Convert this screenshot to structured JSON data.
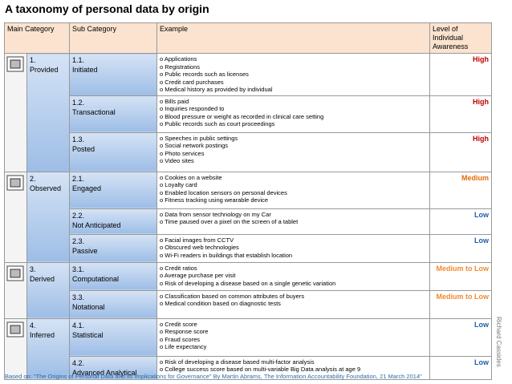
{
  "title": "A taxonomy of personal data by origin",
  "table": {
    "headers": [
      "Main Category",
      "Sub Category",
      "Example",
      "Level of Individual Awareness"
    ],
    "groups": [
      {
        "number": "1.",
        "name": "Provided",
        "rows": [
          {
            "number": "1.1.",
            "name": "Initiated",
            "examples": [
              "o Applications",
              "o Registrations",
              "o Public records such as licenses",
              "o Credit card purchases",
              "o Medical history as provided by individual"
            ],
            "level": "High"
          },
          {
            "number": "1.2.",
            "name": "Transactional",
            "examples": [
              "o Bills paid",
              "o Inquiries responded to",
              "o Blood pressure or weight as recorded in clinical care setting",
              "o Public records such as court proceedings"
            ],
            "level": "High"
          },
          {
            "number": "1.3.",
            "name": "Posted",
            "examples": [
              "o Speeches in public settings",
              "o Social network postings",
              "o Photo services",
              "o Video sites"
            ],
            "level": "High"
          }
        ]
      },
      {
        "number": "2.",
        "name": "Observed",
        "rows": [
          {
            "number": "2.1.",
            "name": "Engaged",
            "examples": [
              "o Cookies on a website",
              "o Loyalty card",
              "o Enabled location sensors on personal devices",
              "o Fitness tracking using wearable device"
            ],
            "level": "Medium"
          },
          {
            "number": "2.2.",
            "name": "Not Anticipated",
            "examples": [
              "o Data from sensor technology on my Car",
              "o Time paused over a pixel on the screen of a tablet"
            ],
            "level": "Low"
          },
          {
            "number": "2.3.",
            "name": "Passive",
            "examples": [
              "o Facial images from CCTV",
              "o Obscured web technologies",
              "o Wi-Fi readers in buildings that establish location"
            ],
            "level": "Low"
          }
        ]
      },
      {
        "number": "3.",
        "name": "Derived",
        "rows": [
          {
            "number": "3.1.",
            "name": "Computational",
            "examples": [
              "o Credit ratios",
              "o Average purchase per visit",
              "o Risk of developing a disease based on a single genetic variation"
            ],
            "level": "Medium to Low"
          },
          {
            "number": "3.3.",
            "name": "Notational",
            "examples": [
              "o Classification based on common attributes of buyers",
              "o Medical condition based on diagnostic tests"
            ],
            "level": "Medium to Low"
          }
        ]
      },
      {
        "number": "4.",
        "name": "Inferred",
        "rows": [
          {
            "number": "4.1.",
            "name": "Statistical",
            "examples": [
              "o Credit score",
              "o Response score",
              "o Fraud scores",
              "o Life expectancy"
            ],
            "level": "Low"
          },
          {
            "number": "4.2.",
            "name": "Advanced Analytical",
            "examples": [
              "o Risk of developing a disease based multi-factor analysis",
              "o College success score based on multi-variable Big Data analysis at age 9"
            ],
            "level": "Low"
          }
        ]
      }
    ]
  },
  "side_note": "Richard Cassides",
  "footer": "Based on: \"The Origins of Personal Data and its Implications for Governance\" By Martin Abrams, The Information Accountability Foundation, 21 March 2014\""
}
